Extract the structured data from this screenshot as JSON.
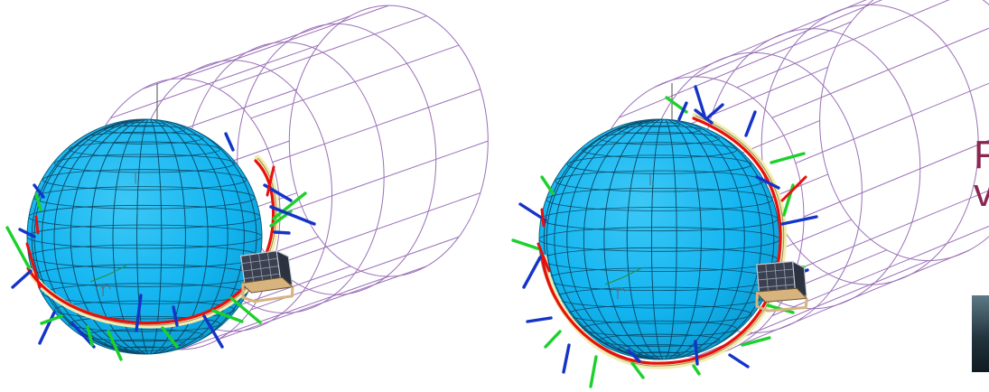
{
  "figure": {
    "views": [
      {
        "id": "view-left",
        "label": ""
      },
      {
        "id": "view-right",
        "label": ""
      }
    ],
    "colors": {
      "earth": "#12b4f0",
      "earth_grid": "#0a3850",
      "cylinder": "#9a70b8",
      "orbit_path": "#e8100c",
      "orbit_band": "#f2ecb0",
      "axis_green": "#1bd12b",
      "axis_blue": "#1434c8",
      "satellite_panel": "#3a4050",
      "satellite_frame": "#d7b37e"
    },
    "icons": [
      "earth-sphere-icon",
      "shadow-cylinder-icon",
      "satellite-icon",
      "aries-symbol-icon"
    ]
  },
  "partial_text": {
    "line1": "F",
    "line2": "v"
  },
  "thumbnail": {
    "present": true
  }
}
